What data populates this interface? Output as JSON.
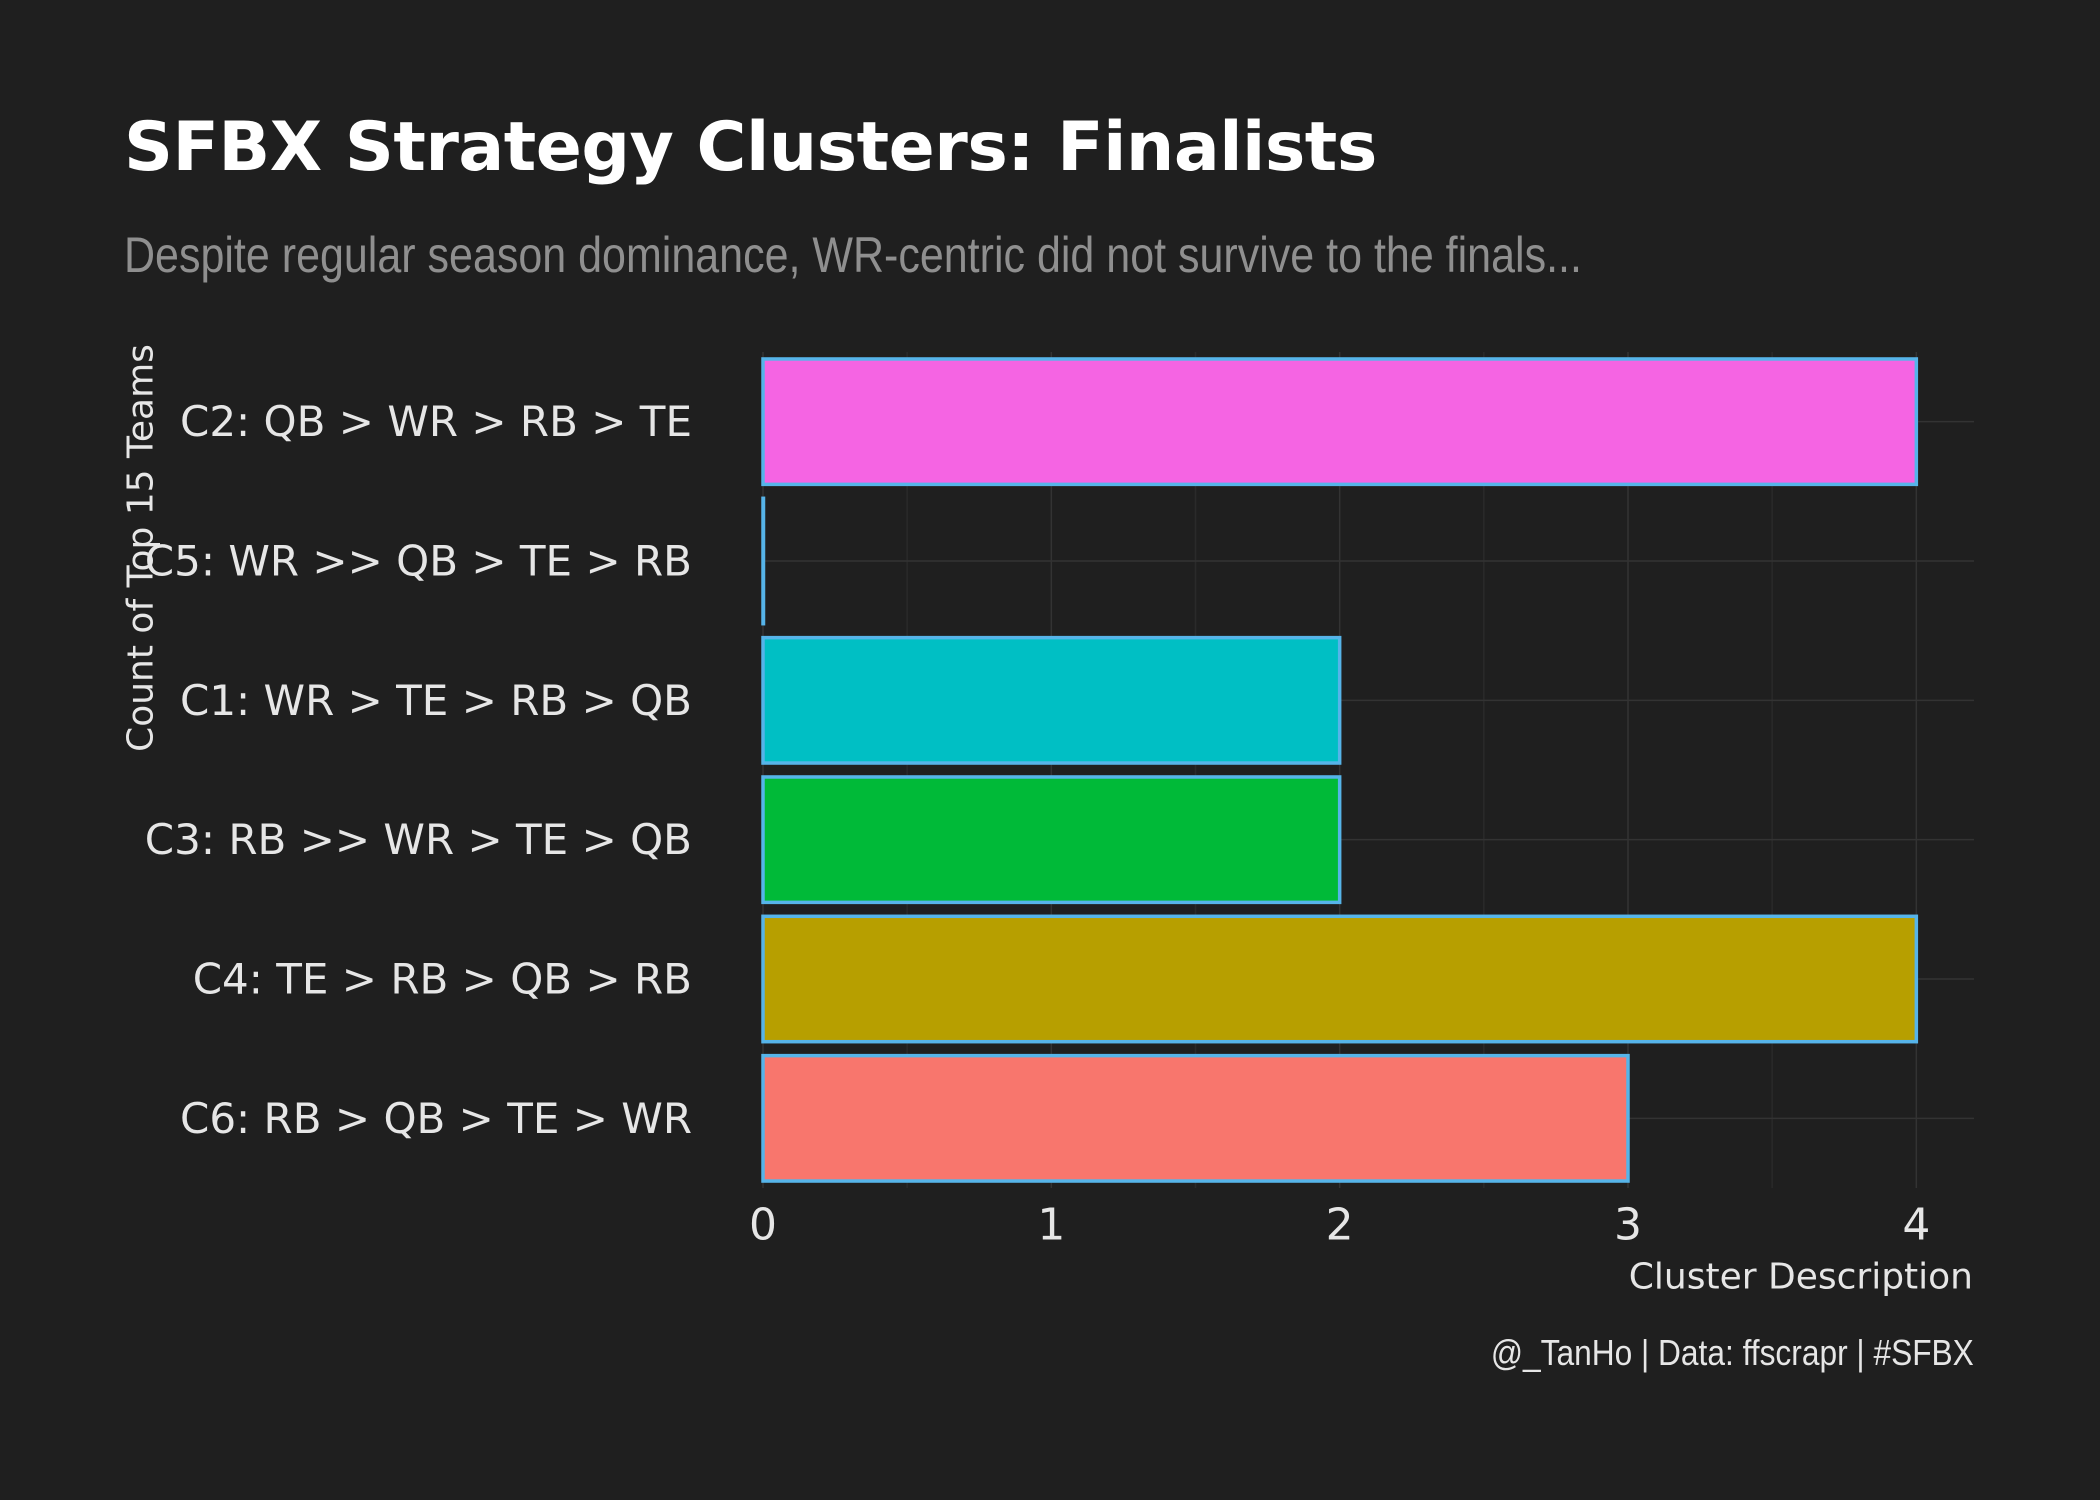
{
  "chart_data": {
    "type": "bar",
    "orientation": "horizontal",
    "title": "SFBX Strategy Clusters: Finalists",
    "subtitle": "Despite regular season dominance, WR-centric did not survive to the finals...",
    "xlabel": "Cluster Description",
    "ylabel": "Count of Top 15 Teams",
    "caption": "@_TanHo | Data: ffscrapr | #SFBX",
    "categories": [
      "C2: QB > WR > RB > TE",
      "C5: WR >> QB > TE > RB",
      "C1: WR > TE > RB > QB",
      "C3: RB >> WR > TE > QB",
      "C4: TE > RB > QB > RB",
      "C6: RB > QB > TE > WR"
    ],
    "values": [
      4,
      0,
      2,
      2,
      4,
      3
    ],
    "colors": [
      "#f564e3",
      "#619cff",
      "#00bfc4",
      "#00ba38",
      "#b79f00",
      "#f8766d"
    ],
    "outline_color": "#56b4e9",
    "xlim": [
      0,
      4.2
    ],
    "xticks": [
      0,
      1,
      2,
      3,
      4
    ],
    "grid": true,
    "legend": "none",
    "background": "#1f1f1f"
  }
}
